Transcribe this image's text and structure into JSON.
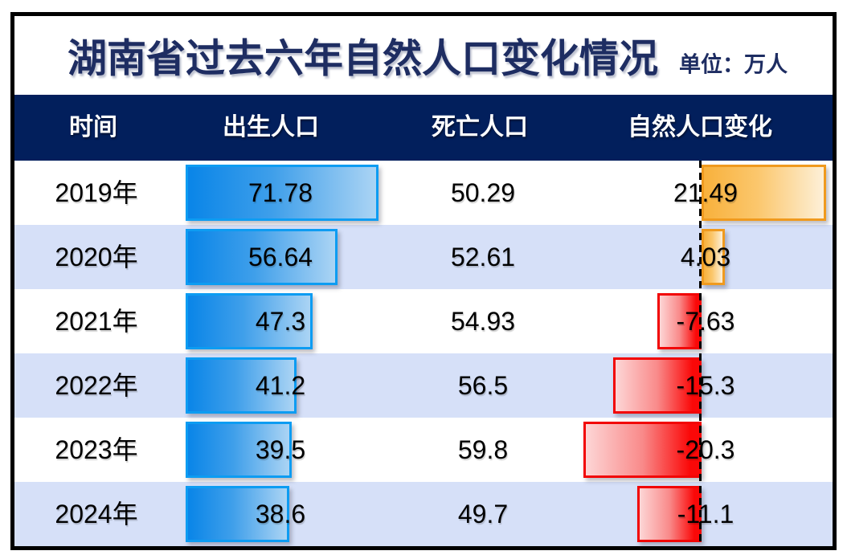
{
  "title": "湖南省过去六年自然人口变化情况",
  "unit_label": "单位：万人",
  "columns": {
    "time": "时间",
    "birth": "出生人口",
    "death": "死亡人口",
    "change": "自然人口变化"
  },
  "rows": [
    {
      "year": "2019年",
      "birth": "71.78",
      "death": "50.29",
      "change": "21.49"
    },
    {
      "year": "2020年",
      "birth": "56.64",
      "death": "52.61",
      "change": "4.03"
    },
    {
      "year": "2021年",
      "birth": "47.3",
      "death": "54.93",
      "change": "-7.63"
    },
    {
      "year": "2022年",
      "birth": "41.2",
      "death": "56.5",
      "change": "-15.3"
    },
    {
      "year": "2023年",
      "birth": "39.5",
      "death": "59.8",
      "change": "-20.3"
    },
    {
      "year": "2024年",
      "birth": "38.6",
      "death": "49.7",
      "change": "-11.1"
    }
  ],
  "colors": {
    "header_bg": "#021f5c",
    "title_text": "#1e2d62",
    "row_alt_bg": "#d6e0f8",
    "birth_bar_fill_start": "#0985e8",
    "birth_bar_fill_end": "#abd4f4",
    "birth_bar_border": "#0d9cf2",
    "positive_bar_fill_start": "#f8b13c",
    "positive_bar_fill_end": "#fdf0d8",
    "positive_bar_border": "#f09a1e",
    "negative_bar_fill_start": "#fdd6d6",
    "negative_bar_fill_end": "#fa0808",
    "negative_bar_border": "#f20505",
    "zero_line": "#000000"
  },
  "chart_data": {
    "type": "bar",
    "title": "湖南省过去六年自然人口变化情况",
    "unit": "万人",
    "categories": [
      "2019年",
      "2020年",
      "2021年",
      "2022年",
      "2023年",
      "2024年"
    ],
    "series": [
      {
        "name": "出生人口",
        "values": [
          71.78,
          56.64,
          47.3,
          41.2,
          39.5,
          38.6
        ]
      },
      {
        "name": "死亡人口",
        "values": [
          50.29,
          52.61,
          54.93,
          56.5,
          59.8,
          49.7
        ]
      },
      {
        "name": "自然人口变化",
        "values": [
          21.49,
          4.03,
          -7.63,
          -15.3,
          -20.3,
          -11.1
        ]
      }
    ],
    "layout": {
      "orientation": "horizontal",
      "birth_bars_plotted": true,
      "death_values_text_only": true,
      "change_bars_diverge_from_zero_axis": true,
      "row_striping": true,
      "legend_position": "none"
    }
  }
}
